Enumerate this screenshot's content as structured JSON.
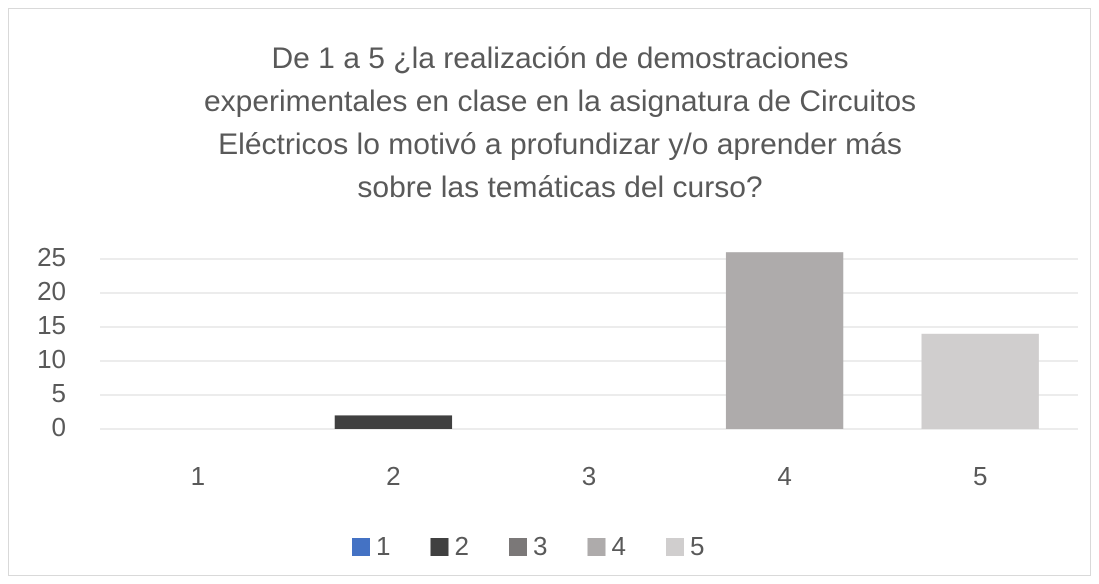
{
  "chart_data": {
    "type": "bar",
    "title": [
      "De 1 a 5 ¿la realización de demostraciones",
      "experimentales en clase en la asignatura de Circuitos",
      "Eléctricos lo motivó a profundizar y/o aprender más",
      "sobre las temáticas del curso?"
    ],
    "categories": [
      "1",
      "2",
      "3",
      "4",
      "5"
    ],
    "values": [
      0,
      2,
      0,
      26,
      14
    ],
    "colors": [
      "#4472c4",
      "#404040",
      "#7b7878",
      "#aeabab",
      "#d0cece"
    ],
    "ylim": [
      0,
      25
    ],
    "yticks": [
      0,
      5,
      10,
      15,
      20,
      25
    ],
    "grid": true,
    "legend": "bottom"
  }
}
